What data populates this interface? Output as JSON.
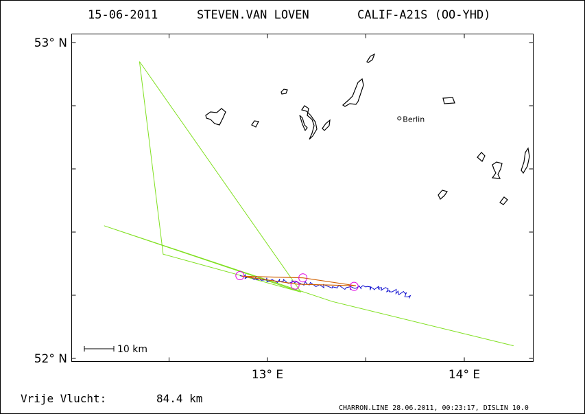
{
  "header": {
    "date": "15-06-2011",
    "pilot": "STEVEN.VAN LOVEN",
    "glider": "CALIF-A21S (OO-YHD)"
  },
  "footer": {
    "distance_label": "Vrije Vlucht:",
    "distance_value": "84.4 km",
    "credit": "CHARRON.LINE 28.06.2011, 00:23:17, DISLIN 10.0"
  },
  "scale_bar": {
    "label": "10 km",
    "km": 10
  },
  "colors": {
    "frame": "#000000",
    "task_line": "#80e020",
    "triangle_line": "#d06000",
    "track": "#1010d0",
    "turnpoints": "#e000e0",
    "water": "#000000",
    "text": "#000000"
  },
  "chart_data": {
    "type": "map",
    "xlim": [
      12.05,
      14.35
    ],
    "ylim": [
      52.0,
      53.05
    ],
    "x_ticks": [
      {
        "value": 13.0,
        "label": "13° E"
      },
      {
        "value": 14.0,
        "label": "14° E"
      }
    ],
    "y_ticks": [
      {
        "value": 52.0,
        "label": "52° N"
      },
      {
        "value": 53.0,
        "label": "53° N"
      }
    ],
    "places": [
      {
        "name": "Berlin",
        "lon": 13.67,
        "lat": 52.76
      }
    ],
    "task_route": [
      {
        "lon": 13.17,
        "lat": 52.21
      },
      {
        "lon": 12.35,
        "lat": 52.94
      },
      {
        "lon": 12.47,
        "lat": 52.33
      },
      {
        "lon": 13.17,
        "lat": 52.21
      },
      {
        "lon": 12.17,
        "lat": 52.42
      },
      {
        "lon": 13.33,
        "lat": 52.18
      },
      {
        "lon": 14.25,
        "lat": 52.04
      }
    ],
    "scored_triangle": [
      {
        "lon": 12.87,
        "lat": 52.26
      },
      {
        "lon": 13.18,
        "lat": 52.255
      },
      {
        "lon": 13.45,
        "lat": 52.23
      },
      {
        "lon": 13.15,
        "lat": 52.235
      },
      {
        "lon": 12.87,
        "lat": 52.26
      }
    ],
    "turnpoints": [
      {
        "lon": 12.86,
        "lat": 52.262
      },
      {
        "lon": 13.18,
        "lat": 52.255
      },
      {
        "lon": 13.14,
        "lat": 52.232
      },
      {
        "lon": 13.44,
        "lat": 52.228
      }
    ],
    "track": [
      {
        "lon": 12.86,
        "lat": 52.262
      },
      {
        "lon": 12.92,
        "lat": 52.257
      },
      {
        "lon": 12.96,
        "lat": 52.252
      },
      {
        "lon": 13.02,
        "lat": 52.248
      },
      {
        "lon": 13.08,
        "lat": 52.244
      },
      {
        "lon": 13.14,
        "lat": 52.24
      },
      {
        "lon": 13.2,
        "lat": 52.236
      },
      {
        "lon": 13.27,
        "lat": 52.231
      },
      {
        "lon": 13.33,
        "lat": 52.227
      },
      {
        "lon": 13.4,
        "lat": 52.224
      },
      {
        "lon": 13.45,
        "lat": 52.222
      },
      {
        "lon": 13.5,
        "lat": 52.226
      },
      {
        "lon": 13.54,
        "lat": 52.22
      },
      {
        "lon": 13.58,
        "lat": 52.224
      },
      {
        "lon": 13.62,
        "lat": 52.215
      },
      {
        "lon": 13.66,
        "lat": 52.21
      },
      {
        "lon": 13.7,
        "lat": 52.205
      },
      {
        "lon": 13.72,
        "lat": 52.19
      }
    ]
  }
}
